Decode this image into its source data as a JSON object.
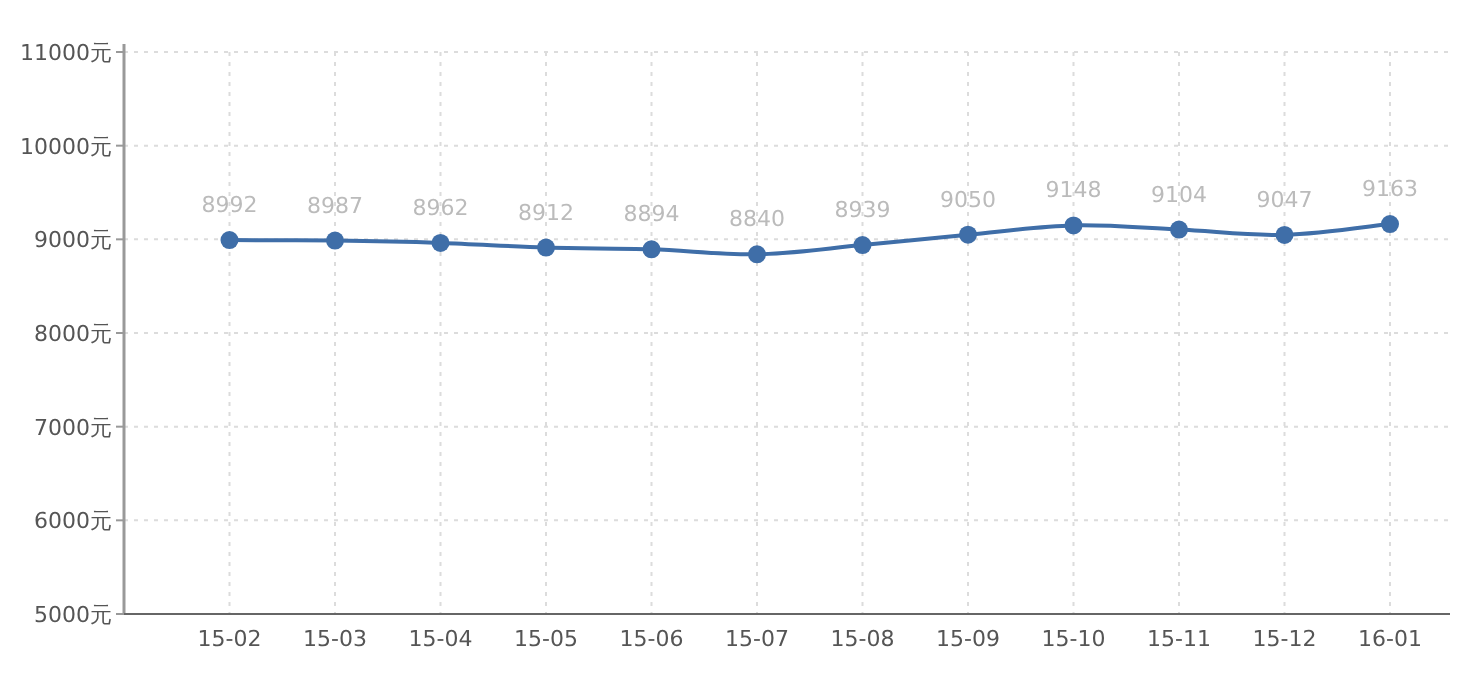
{
  "chart_data": {
    "type": "line",
    "categories": [
      "15-02",
      "15-03",
      "15-04",
      "15-05",
      "15-06",
      "15-07",
      "15-08",
      "15-09",
      "15-10",
      "15-11",
      "15-12",
      "16-01"
    ],
    "series": [
      {
        "color": "#3f6ea8",
        "values": [
          8992,
          8987,
          8962,
          8912,
          8894,
          8840,
          8939,
          9050,
          9148,
          9104,
          9047,
          9163
        ]
      }
    ],
    "ylim": [
      5000,
      11000
    ],
    "yticks": [
      {
        "value": 5000,
        "label": "5000元"
      },
      {
        "value": 6000,
        "label": "6000元"
      },
      {
        "value": 7000,
        "label": "7000元"
      },
      {
        "value": 8000,
        "label": "8000元"
      },
      {
        "value": 9000,
        "label": "9000元"
      },
      {
        "value": 10000,
        "label": "10000元"
      },
      {
        "value": 11000,
        "label": "11000元"
      }
    ],
    "grid": true,
    "marker": "circle",
    "line_style": "solid",
    "data_labels": true
  }
}
